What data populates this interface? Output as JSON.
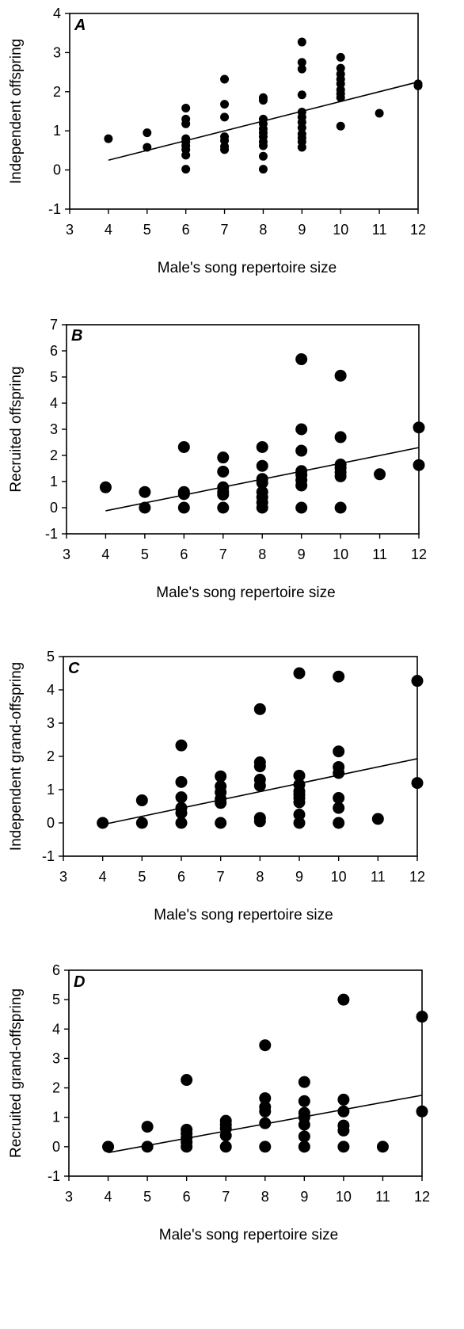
{
  "chart_data": [
    {
      "type": "scatter",
      "panel": "A",
      "xlabel": "Male's song repertoire size",
      "ylabel": "Independent offspring",
      "xlim": [
        3,
        12
      ],
      "ylim": [
        -1,
        4
      ],
      "xticks": [
        "3",
        "4",
        "5",
        "6",
        "7",
        "8",
        "9",
        "10",
        "11",
        "12"
      ],
      "yticks": [
        "-1",
        "0",
        "1",
        "2",
        "3",
        "4"
      ],
      "points": [
        [
          4,
          0.8
        ],
        [
          5,
          0.95
        ],
        [
          5,
          0.58
        ],
        [
          6,
          1.58
        ],
        [
          6,
          1.3
        ],
        [
          6,
          1.18
        ],
        [
          6,
          0.8
        ],
        [
          6,
          0.72
        ],
        [
          6,
          0.62
        ],
        [
          6,
          0.52
        ],
        [
          6,
          0.38
        ],
        [
          6,
          0.02
        ],
        [
          7,
          2.32
        ],
        [
          7,
          1.68
        ],
        [
          7,
          1.35
        ],
        [
          7,
          0.85
        ],
        [
          7,
          0.75
        ],
        [
          7,
          0.6
        ],
        [
          7,
          0.52
        ],
        [
          8,
          1.85
        ],
        [
          8,
          1.78
        ],
        [
          8,
          1.3
        ],
        [
          8,
          1.18
        ],
        [
          8,
          1.05
        ],
        [
          8,
          0.95
        ],
        [
          8,
          0.85
        ],
        [
          8,
          0.72
        ],
        [
          8,
          0.62
        ],
        [
          8,
          0.35
        ],
        [
          8,
          0.02
        ],
        [
          9,
          3.27
        ],
        [
          9,
          2.75
        ],
        [
          9,
          2.58
        ],
        [
          9,
          1.92
        ],
        [
          9,
          1.48
        ],
        [
          9,
          1.35
        ],
        [
          9,
          1.22
        ],
        [
          9,
          1.08
        ],
        [
          9,
          0.92
        ],
        [
          9,
          0.82
        ],
        [
          9,
          0.72
        ],
        [
          9,
          0.58
        ],
        [
          10,
          2.88
        ],
        [
          10,
          2.6
        ],
        [
          10,
          2.45
        ],
        [
          10,
          2.32
        ],
        [
          10,
          2.2
        ],
        [
          10,
          2.05
        ],
        [
          10,
          1.95
        ],
        [
          10,
          1.85
        ],
        [
          10,
          1.12
        ],
        [
          11,
          1.45
        ],
        [
          12,
          2.2
        ],
        [
          12,
          2.15
        ]
      ],
      "trendline": [
        [
          4,
          0.25
        ],
        [
          12,
          2.25
        ]
      ],
      "marker_size": "small"
    },
    {
      "type": "scatter",
      "panel": "B",
      "xlabel": "Male's song repertoire size",
      "ylabel": "Recruited offspring",
      "xlim": [
        3,
        12
      ],
      "ylim": [
        -1,
        7
      ],
      "xticks": [
        "3",
        "4",
        "5",
        "6",
        "7",
        "8",
        "9",
        "10",
        "11",
        "12"
      ],
      "yticks": [
        "-1",
        "0",
        "1",
        "2",
        "3",
        "4",
        "5",
        "6",
        "7"
      ],
      "points": [
        [
          4,
          0.78
        ],
        [
          5,
          0.6
        ],
        [
          5,
          0.0
        ],
        [
          6,
          2.32
        ],
        [
          6,
          0.6
        ],
        [
          6,
          0.52
        ],
        [
          6,
          0.0
        ],
        [
          7,
          1.92
        ],
        [
          7,
          1.38
        ],
        [
          7,
          0.78
        ],
        [
          7,
          0.6
        ],
        [
          7,
          0.5
        ],
        [
          7,
          0.0
        ],
        [
          8,
          2.32
        ],
        [
          8,
          1.6
        ],
        [
          8,
          1.1
        ],
        [
          8,
          0.95
        ],
        [
          8,
          0.6
        ],
        [
          8,
          0.4
        ],
        [
          8,
          0.2
        ],
        [
          8,
          0.0
        ],
        [
          9,
          5.68
        ],
        [
          9,
          3.0
        ],
        [
          9,
          2.18
        ],
        [
          9,
          1.4
        ],
        [
          9,
          1.25
        ],
        [
          9,
          1.05
        ],
        [
          9,
          0.85
        ],
        [
          9,
          0.0
        ],
        [
          10,
          5.05
        ],
        [
          10,
          2.7
        ],
        [
          10,
          1.65
        ],
        [
          10,
          1.52
        ],
        [
          10,
          1.35
        ],
        [
          10,
          1.2
        ],
        [
          10,
          0.0
        ],
        [
          11,
          1.28
        ],
        [
          12,
          3.07
        ],
        [
          12,
          1.63
        ]
      ],
      "trendline": [
        [
          4,
          -0.12
        ],
        [
          12,
          2.3
        ]
      ],
      "marker_size": "large"
    },
    {
      "type": "scatter",
      "panel": "C",
      "xlabel": "Male's song repertoire size",
      "ylabel": "Independent grand-offspring",
      "xlim": [
        3,
        12
      ],
      "ylim": [
        -1,
        5
      ],
      "xticks": [
        "3",
        "4",
        "5",
        "6",
        "7",
        "8",
        "9",
        "10",
        "11",
        "12"
      ],
      "yticks": [
        "-1",
        "0",
        "1",
        "2",
        "3",
        "4",
        "5"
      ],
      "points": [
        [
          4,
          0.0
        ],
        [
          5,
          0.68
        ],
        [
          5,
          0.0
        ],
        [
          6,
          2.33
        ],
        [
          6,
          1.23
        ],
        [
          6,
          0.77
        ],
        [
          6,
          0.45
        ],
        [
          6,
          0.3
        ],
        [
          6,
          0.0
        ],
        [
          7,
          1.4
        ],
        [
          7,
          1.1
        ],
        [
          7,
          0.92
        ],
        [
          7,
          0.72
        ],
        [
          7,
          0.6
        ],
        [
          7,
          0.0
        ],
        [
          8,
          3.42
        ],
        [
          8,
          1.82
        ],
        [
          8,
          1.7
        ],
        [
          8,
          1.3
        ],
        [
          8,
          1.12
        ],
        [
          8,
          0.15
        ],
        [
          8,
          0.05
        ],
        [
          9,
          4.5
        ],
        [
          9,
          1.42
        ],
        [
          9,
          1.15
        ],
        [
          9,
          0.95
        ],
        [
          9,
          0.85
        ],
        [
          9,
          0.75
        ],
        [
          9,
          0.62
        ],
        [
          9,
          0.25
        ],
        [
          9,
          0.0
        ],
        [
          10,
          4.4
        ],
        [
          10,
          2.15
        ],
        [
          10,
          1.68
        ],
        [
          10,
          1.5
        ],
        [
          10,
          0.75
        ],
        [
          10,
          0.45
        ],
        [
          10,
          0.0
        ],
        [
          11,
          0.12
        ],
        [
          12,
          4.27
        ],
        [
          12,
          1.2
        ]
      ],
      "trendline": [
        [
          4,
          -0.05
        ],
        [
          12,
          1.93
        ]
      ],
      "marker_size": "large"
    },
    {
      "type": "scatter",
      "panel": "D",
      "xlabel": "Male's song repertoire size",
      "ylabel": "Recruited grand-offspring",
      "xlim": [
        3,
        12
      ],
      "ylim": [
        -1,
        6
      ],
      "xticks": [
        "3",
        "4",
        "5",
        "6",
        "7",
        "8",
        "9",
        "10",
        "11",
        "12"
      ],
      "yticks": [
        "-1",
        "0",
        "1",
        "2",
        "3",
        "4",
        "5",
        "6"
      ],
      "points": [
        [
          4,
          0.0
        ],
        [
          5,
          0.68
        ],
        [
          5,
          0.0
        ],
        [
          6,
          2.27
        ],
        [
          6,
          0.58
        ],
        [
          6,
          0.45
        ],
        [
          6,
          0.3
        ],
        [
          6,
          0.15
        ],
        [
          6,
          0.0
        ],
        [
          7,
          0.88
        ],
        [
          7,
          0.75
        ],
        [
          7,
          0.62
        ],
        [
          7,
          0.38
        ],
        [
          7,
          0.0
        ],
        [
          8,
          3.45
        ],
        [
          8,
          1.65
        ],
        [
          8,
          1.35
        ],
        [
          8,
          1.2
        ],
        [
          8,
          0.8
        ],
        [
          8,
          0.0
        ],
        [
          9,
          2.2
        ],
        [
          9,
          1.55
        ],
        [
          9,
          1.15
        ],
        [
          9,
          1.0
        ],
        [
          9,
          0.75
        ],
        [
          9,
          0.35
        ],
        [
          9,
          0.0
        ],
        [
          10,
          5.0
        ],
        [
          10,
          1.6
        ],
        [
          10,
          1.2
        ],
        [
          10,
          0.72
        ],
        [
          10,
          0.55
        ],
        [
          10,
          0.0
        ],
        [
          11,
          0.0
        ],
        [
          12,
          4.42
        ],
        [
          12,
          1.2
        ]
      ],
      "trendline": [
        [
          4,
          -0.2
        ],
        [
          12,
          1.75
        ]
      ],
      "marker_size": "large"
    }
  ]
}
